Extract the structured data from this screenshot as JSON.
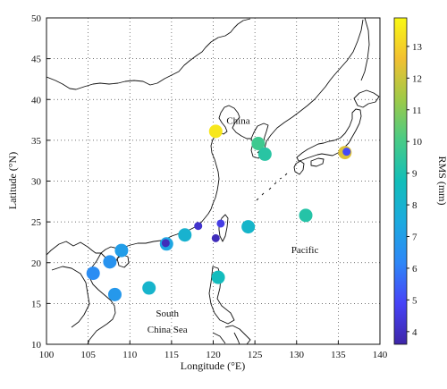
{
  "map": {
    "xlabel": "Longitude (°E)",
    "ylabel": "Latitude (°N)",
    "xlim": [
      100,
      140
    ],
    "ylim": [
      10,
      50
    ],
    "x_ticks": [
      100,
      105,
      110,
      115,
      120,
      125,
      130,
      135,
      140
    ],
    "y_ticks": [
      10,
      15,
      20,
      25,
      30,
      35,
      40,
      45,
      50
    ],
    "grid": true,
    "regions": [
      {
        "name": "China",
        "lon": 123.0,
        "lat": 37.0
      },
      {
        "name": "Pacific",
        "lon": 131.0,
        "lat": 21.2
      },
      {
        "name": "South",
        "lon": 114.5,
        "lat": 13.4
      },
      {
        "name": "China Sea",
        "lon": 114.5,
        "lat": 11.4
      }
    ]
  },
  "colorbar": {
    "label": "RMS (mm)",
    "min": 3.6,
    "max": 13.9,
    "ticks": [
      4,
      5,
      6,
      7,
      8,
      9,
      10,
      11,
      12,
      13
    ],
    "colormap": [
      "#3e26a8",
      "#4743f7",
      "#2e87f7",
      "#1caadf",
      "#12beb9",
      "#48cb86",
      "#9eca48",
      "#f2c031",
      "#f9f914"
    ]
  },
  "stations": [
    {
      "lon": 120.3,
      "lat": 36.1,
      "rms": 13.5,
      "size": "large"
    },
    {
      "lon": 125.4,
      "lat": 34.6,
      "rms": 9.8,
      "size": "large"
    },
    {
      "lon": 126.2,
      "lat": 33.3,
      "rms": 9.3,
      "size": "large"
    },
    {
      "lon": 135.8,
      "lat": 33.5,
      "rms": 12.3,
      "size": "large"
    },
    {
      "lon": 136.0,
      "lat": 33.6,
      "rms": 5.0,
      "size": "small"
    },
    {
      "lon": 131.1,
      "lat": 25.8,
      "rms": 9.2,
      "size": "large"
    },
    {
      "lon": 124.2,
      "lat": 24.4,
      "rms": 8.2,
      "size": "large"
    },
    {
      "lon": 116.6,
      "lat": 23.4,
      "rms": 8.0,
      "size": "large"
    },
    {
      "lon": 118.2,
      "lat": 24.5,
      "rms": 4.2,
      "size": "small"
    },
    {
      "lon": 114.4,
      "lat": 22.3,
      "rms": 7.3,
      "size": "large"
    },
    {
      "lon": 114.3,
      "lat": 22.4,
      "rms": 3.9,
      "size": "small"
    },
    {
      "lon": 120.9,
      "lat": 24.8,
      "rms": 4.6,
      "size": "small"
    },
    {
      "lon": 120.3,
      "lat": 23.0,
      "rms": 3.9,
      "size": "small"
    },
    {
      "lon": 109.0,
      "lat": 21.5,
      "rms": 7.0,
      "size": "large"
    },
    {
      "lon": 107.6,
      "lat": 20.1,
      "rms": 6.6,
      "size": "large"
    },
    {
      "lon": 105.6,
      "lat": 18.7,
      "rms": 6.4,
      "size": "large"
    },
    {
      "lon": 108.2,
      "lat": 16.1,
      "rms": 6.8,
      "size": "large"
    },
    {
      "lon": 112.3,
      "lat": 16.9,
      "rms": 8.1,
      "size": "large"
    },
    {
      "lon": 120.6,
      "lat": 18.2,
      "rms": 8.6,
      "size": "large"
    }
  ]
}
